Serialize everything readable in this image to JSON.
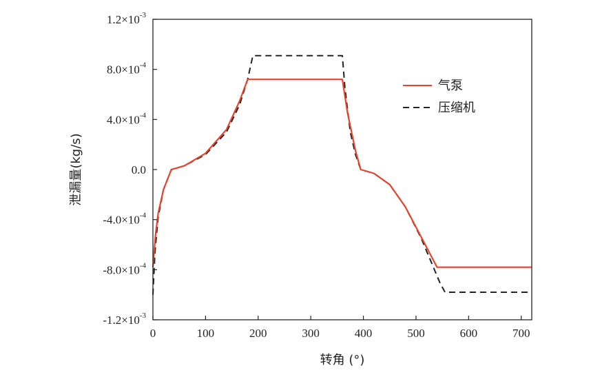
{
  "chart_data": {
    "type": "line",
    "title": "",
    "xlabel": "转角 (°)",
    "ylabel": "泄漏量(kg/s)",
    "xlim": [
      0,
      720
    ],
    "ylim": [
      -0.0012,
      0.0012
    ],
    "x_ticks": [
      0,
      100,
      200,
      300,
      400,
      500,
      600,
      700
    ],
    "x_tick_labels": [
      "0",
      "100",
      "200",
      "300",
      "400",
      "500",
      "600",
      "700"
    ],
    "y_ticks": [
      0.0012,
      0.0008,
      0.0004,
      0.0,
      -0.0004,
      -0.0008,
      -0.0012
    ],
    "y_tick_labels": [
      {
        "mantissa": "1.2×10",
        "exp": "-3"
      },
      {
        "mantissa": "8.0×10",
        "exp": "-4"
      },
      {
        "mantissa": "4.0×10",
        "exp": "-4"
      },
      {
        "mantissa": "0.0",
        "exp": ""
      },
      {
        "mantissa": "-4.0×10",
        "exp": "-4"
      },
      {
        "mantissa": "-8.0×10",
        "exp": "-4"
      },
      {
        "mantissa": "-1.2×10",
        "exp": "-3"
      }
    ],
    "legend_position": "right",
    "series": [
      {
        "name": "气泵",
        "color": "#e8432a",
        "style": "solid",
        "x": [
          0,
          5,
          10,
          20,
          35,
          60,
          100,
          140,
          165,
          180,
          200,
          250,
          300,
          360,
          370,
          385,
          395,
          420,
          450,
          480,
          510,
          530,
          540,
          560,
          620,
          720
        ],
        "y": [
          -0.00078,
          -0.00052,
          -0.00035,
          -0.00016,
          0.0,
          3e-05,
          0.00013,
          0.00032,
          0.00055,
          0.00072,
          0.00072,
          0.00072,
          0.00072,
          0.00072,
          0.00045,
          0.00015,
          0.0,
          -3e-05,
          -0.00012,
          -0.0003,
          -0.00054,
          -0.0007,
          -0.00078,
          -0.00078,
          -0.00078,
          -0.00078
        ]
      },
      {
        "name": "压缩机",
        "color": "#222222",
        "style": "dashed",
        "x": [
          0,
          4,
          10,
          20,
          35,
          60,
          100,
          140,
          165,
          180,
          190,
          250,
          300,
          360,
          365,
          375,
          385,
          395,
          420,
          450,
          480,
          510,
          530,
          545,
          555,
          620,
          720
        ],
        "y": [
          -0.001,
          -0.00065,
          -0.00038,
          -0.00016,
          0.0,
          3e-05,
          0.00012,
          0.0003,
          0.00052,
          0.00072,
          0.00091,
          0.00091,
          0.00091,
          0.00091,
          0.00065,
          0.0003,
          0.00012,
          0.0,
          -3e-05,
          -0.00012,
          -0.0003,
          -0.00055,
          -0.00075,
          -0.0009,
          -0.00098,
          -0.00098,
          -0.00098
        ]
      }
    ]
  }
}
